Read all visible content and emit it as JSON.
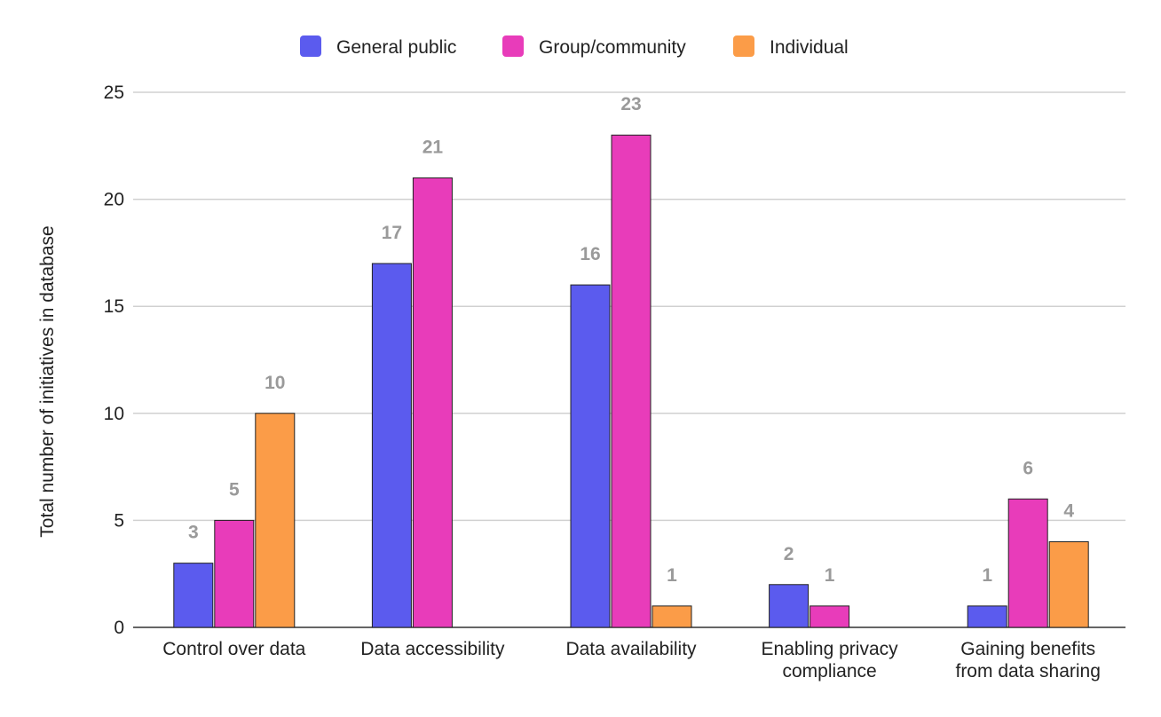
{
  "chart_data": {
    "type": "bar",
    "title": "",
    "xlabel": "",
    "ylabel": "Total number of initiatives in database",
    "ylim": [
      0,
      25
    ],
    "yticks": [
      0,
      5,
      10,
      15,
      20,
      25
    ],
    "grid": true,
    "legend_position": "top",
    "categories": [
      [
        "Control over data"
      ],
      [
        "Data accessibility"
      ],
      [
        "Data availability"
      ],
      [
        "Enabling privacy",
        "compliance"
      ],
      [
        "Gaining benefits",
        "from data sharing"
      ]
    ],
    "series": [
      {
        "name": "General public",
        "color": "#5b5bee",
        "values": [
          3,
          17,
          16,
          2,
          1
        ]
      },
      {
        "name": "Group/community",
        "color": "#e83cba",
        "values": [
          5,
          21,
          23,
          1,
          6
        ]
      },
      {
        "name": "Individual",
        "color": "#fb9c48",
        "values": [
          10,
          null,
          1,
          null,
          4
        ]
      }
    ]
  }
}
